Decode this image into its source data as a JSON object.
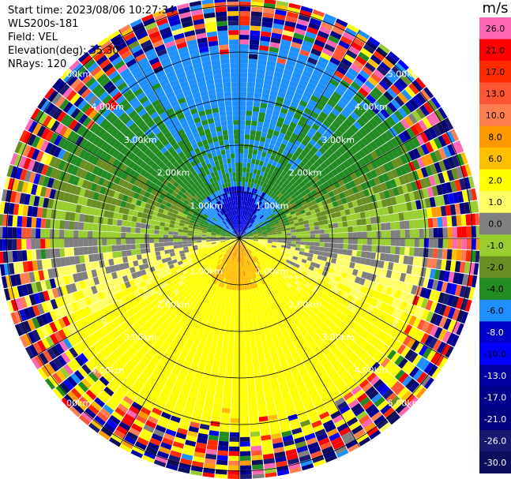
{
  "header": {
    "start_time": "Start time: 2023/08/06 10:27:34",
    "instrument": "WLS200s-181",
    "field": "Field: VEL",
    "elevation": "Elevation(deg): 35.30",
    "nrays": "NRays: 120"
  },
  "colorbar": {
    "unit": "m/s",
    "bins": [
      {
        "label": "26.0",
        "color": "#ff66b3",
        "text": "#000000"
      },
      {
        "label": "21.0",
        "color": "#ff0000",
        "text": "#000000"
      },
      {
        "label": "17.0",
        "color": "#ff2a00",
        "text": "#000000"
      },
      {
        "label": "13.0",
        "color": "#ff5533",
        "text": "#000000"
      },
      {
        "label": "10.0",
        "color": "#ff7f50",
        "text": "#000000"
      },
      {
        "label": "8.0",
        "color": "#ff9900",
        "text": "#000000"
      },
      {
        "label": "6.0",
        "color": "#ffbf00",
        "text": "#000000"
      },
      {
        "label": "2.0",
        "color": "#ffff00",
        "text": "#000000"
      },
      {
        "label": "1.0",
        "color": "#ffff66",
        "text": "#000000"
      },
      {
        "label": "0.0",
        "color": "#7f7f7f",
        "text": "#000000"
      },
      {
        "label": "-1.0",
        "color": "#9acd32",
        "text": "#000000"
      },
      {
        "label": "-2.0",
        "color": "#6b8e23",
        "text": "#000000"
      },
      {
        "label": "-4.0",
        "color": "#228b22",
        "text": "#000000"
      },
      {
        "label": "-6.0",
        "color": "#1e90ff",
        "text": "#000000"
      },
      {
        "label": "-8.0",
        "color": "#0000cd",
        "text": "#ffffff"
      },
      {
        "label": "-10.0",
        "color": "#0000ff",
        "text": "#000000"
      },
      {
        "label": "-13.0",
        "color": "#0000a0",
        "text": "#ffffff"
      },
      {
        "label": "-17.0",
        "color": "#00008b",
        "text": "#ffffff"
      },
      {
        "label": "-21.0",
        "color": "#000080",
        "text": "#ffffff"
      },
      {
        "label": "-26.0",
        "color": "#191970",
        "text": "#ffffff"
      },
      {
        "label": "-30.0",
        "color": "#0d0d5e",
        "text": "#ffffff"
      }
    ]
  },
  "chart_data": {
    "type": "heatmap",
    "projection": "polar PPI",
    "nrays": 120,
    "range_rings_km": [
      1,
      2,
      3,
      4,
      5
    ],
    "range_ring_labels": [
      "1.00km",
      "2.00km",
      "3.00km",
      "4.00km",
      "5.00km"
    ],
    "spokes_deg": [
      0,
      30,
      60,
      90,
      120,
      150,
      180,
      210,
      240,
      270,
      300,
      330
    ],
    "pattern": {
      "north_center": "negative velocities (green to blue)",
      "south_center": "positive velocities (yellow to orange/salmon)",
      "east_west": "near zero (gray)",
      "far_range": "noisy mixed values"
    }
  }
}
